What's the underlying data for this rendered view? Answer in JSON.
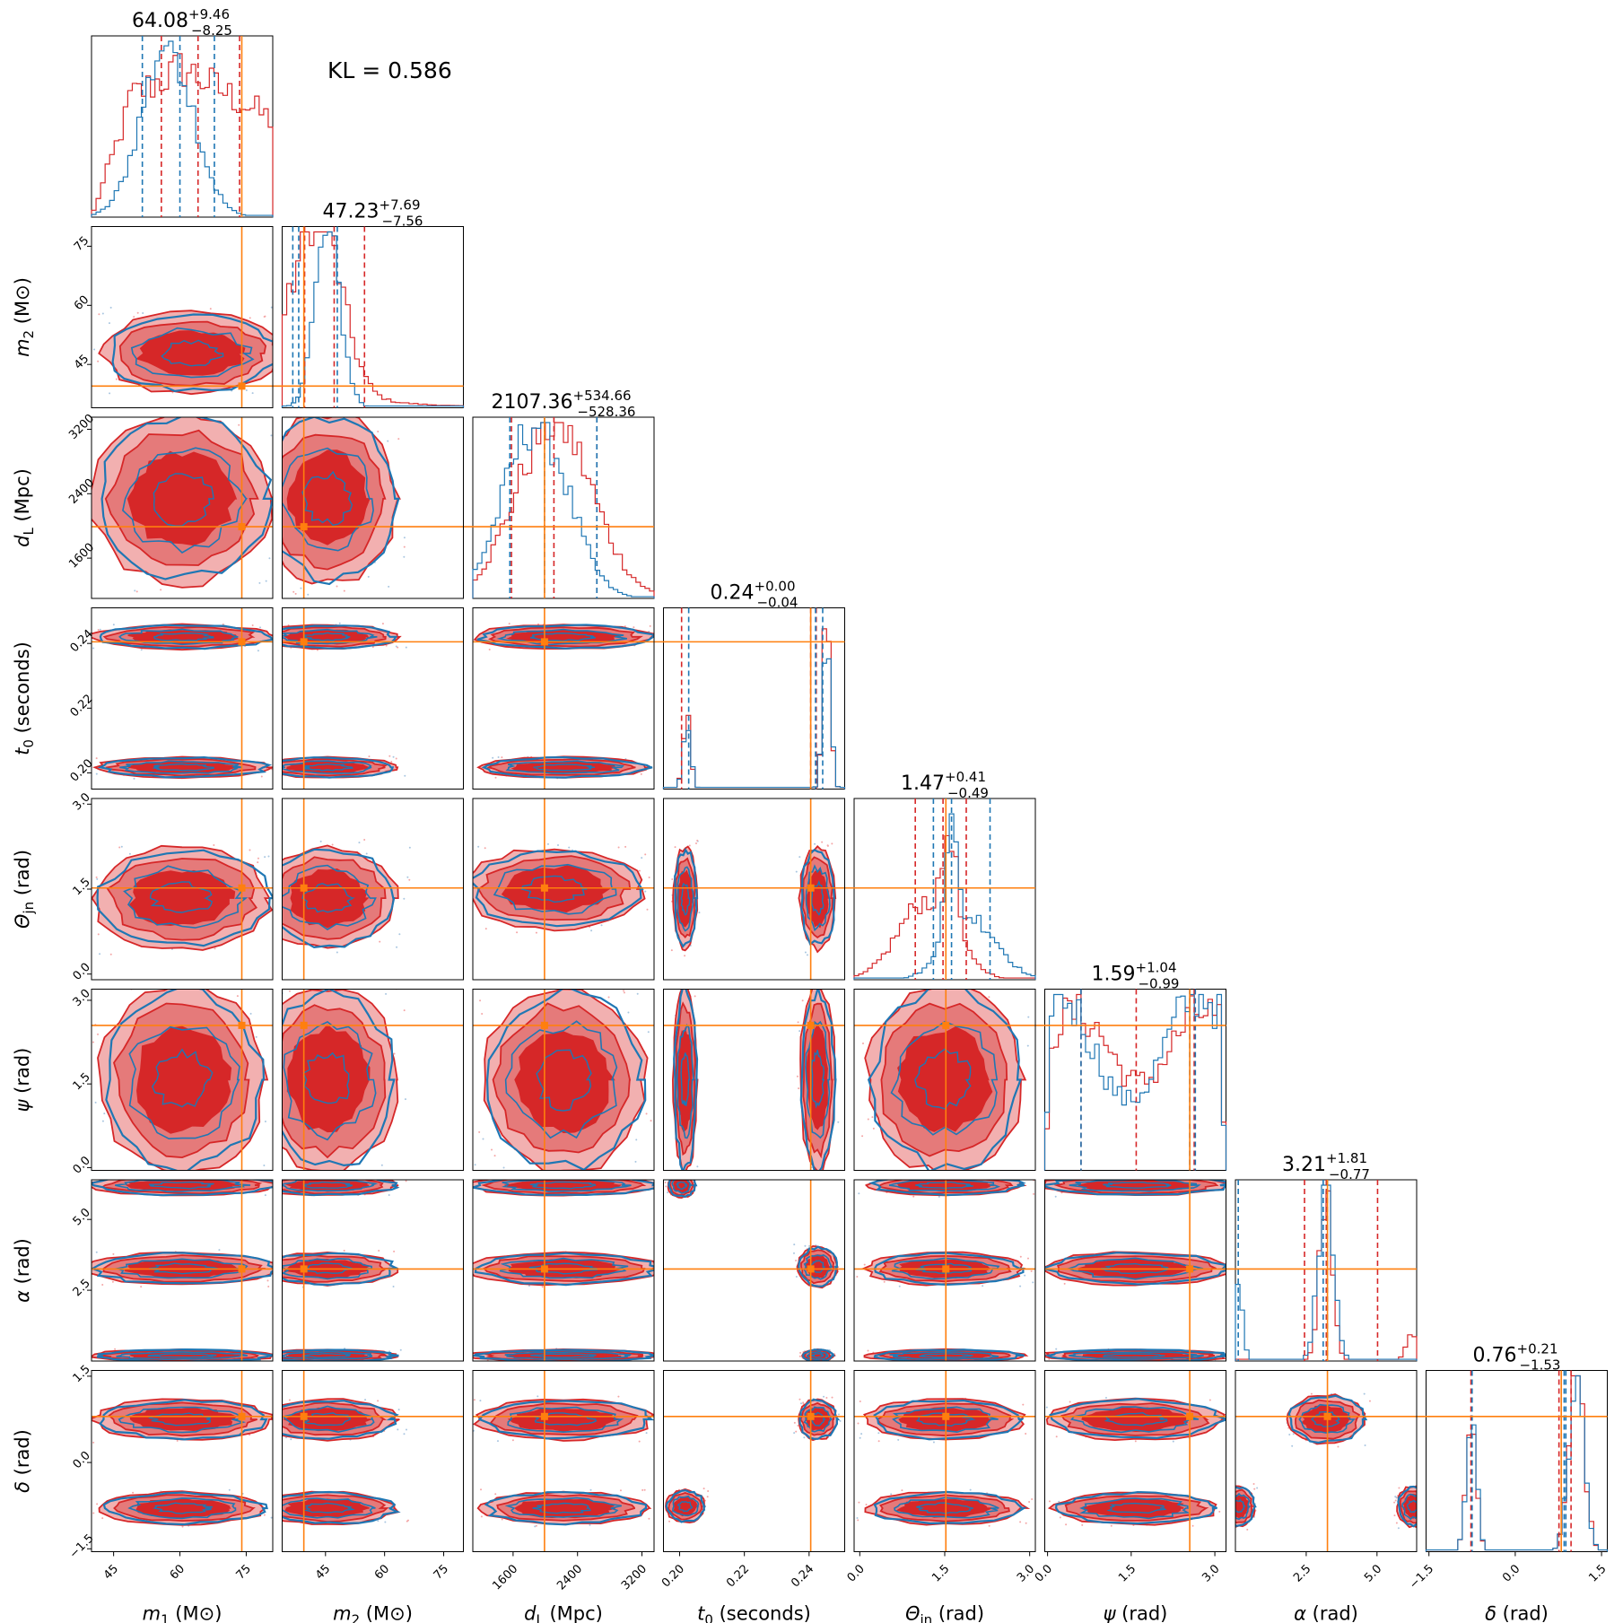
{
  "kl_label": "KL = 0.586",
  "colors": {
    "red": "#d62728",
    "blue": "#1f77b4",
    "orange": "#ff7f0e"
  },
  "chart_data": {
    "type": "corner",
    "series": [
      {
        "name": "",
        "color": "#d62728"
      },
      {
        "name": "",
        "color": "#1f77b4"
      }
    ],
    "parameters": [
      {
        "key": "m1",
        "axis_label": "m₁ (M⊙)",
        "range": [
          40,
          81
        ],
        "ticks": [
          45,
          60,
          75
        ],
        "tick_labels": [
          "45",
          "60",
          "75"
        ],
        "injected": 74,
        "title_median": "64.08",
        "title_plus": "+9.46",
        "title_minus": "−8.25",
        "red_quantiles": [
          55.8,
          64.1,
          73.5
        ],
        "blue_quantiles": [
          51.5,
          60,
          67.8
        ]
      },
      {
        "key": "m2",
        "axis_label": "m₂ (M⊙)",
        "range": [
          34,
          80
        ],
        "ticks": [
          45,
          60,
          75
        ],
        "tick_labels": [
          "45",
          "60",
          "75"
        ],
        "injected": 39.5,
        "title_median": "47.23",
        "title_plus": "+7.69",
        "title_minus": "−7.56",
        "red_quantiles": [
          39.7,
          47.2,
          54.9
        ],
        "blue_quantiles": [
          36.7,
          38.2,
          48
        ]
      },
      {
        "key": "dL",
        "axis_label": "d_L (Mpc)",
        "range": [
          1100,
          3350
        ],
        "ticks": [
          1600,
          2400,
          3200
        ],
        "tick_labels": [
          "1600",
          "2400",
          "3200"
        ],
        "injected": 1990,
        "title_median": "2107.36",
        "title_plus": "+534.66",
        "title_minus": "−528.36",
        "red_quantiles": [
          1580,
          2107,
          2640
        ],
        "blue_quantiles": [
          1560,
          1990,
          2640
        ]
      },
      {
        "key": "t0",
        "axis_label": "t₀ (seconds)",
        "range": [
          0.195,
          0.251
        ],
        "ticks": [
          0.2,
          0.22,
          0.24
        ],
        "tick_labels": [
          "0.20",
          "0.22",
          "0.24"
        ],
        "injected": 0.2405,
        "title_median": "0.24",
        "title_plus": "+0.00",
        "title_minus": "−0.04",
        "red_quantiles": [
          0.2006,
          0.2405,
          0.2422
        ],
        "blue_quantiles": [
          0.2028,
          0.242,
          0.2442
        ]
      },
      {
        "key": "theta",
        "axis_label": "Θ_jn (rad)",
        "range": [
          -0.1,
          3.1
        ],
        "ticks": [
          0.0,
          1.5,
          3.0
        ],
        "tick_labels": [
          "0.0",
          "1.5",
          "3.0"
        ],
        "injected": 1.52,
        "title_median": "1.47",
        "title_plus": "+0.41",
        "title_minus": "−0.49",
        "red_quantiles": [
          0.98,
          1.47,
          1.88
        ],
        "blue_quantiles": [
          1.3,
          1.62,
          2.3
        ]
      },
      {
        "key": "psi",
        "axis_label": "ψ (rad)",
        "range": [
          -0.05,
          3.2
        ],
        "ticks": [
          0.0,
          1.5,
          3.0
        ],
        "tick_labels": [
          "0.0",
          "1.5",
          "3.0"
        ],
        "injected": 2.55,
        "title_median": "1.59",
        "title_plus": "+1.04",
        "title_minus": "−0.99",
        "red_quantiles": [
          0.6,
          1.59,
          2.63
        ],
        "blue_quantiles": [
          0.6,
          2.55,
          2.65
        ]
      },
      {
        "key": "alpha",
        "axis_label": "α (rad)",
        "range": [
          0,
          6.4
        ],
        "ticks": [
          2.5,
          5.0
        ],
        "tick_labels": [
          "2.5",
          "5.0"
        ],
        "injected": 3.25,
        "title_median": "3.21",
        "title_plus": "+1.81",
        "title_minus": "−0.77",
        "red_quantiles": [
          2.44,
          3.21,
          5.02
        ],
        "blue_quantiles": [
          0.1,
          3.1,
          3.25
        ]
      },
      {
        "key": "delta",
        "axis_label": "δ (rad)",
        "range": [
          -1.55,
          1.6
        ],
        "ticks": [
          -1.5,
          0.0,
          1.5
        ],
        "tick_labels": [
          "−1.5",
          "0.0",
          "1.5"
        ],
        "injected": 0.8,
        "title_median": "0.76",
        "title_plus": "+0.21",
        "title_minus": "−1.53",
        "red_quantiles": [
          -0.77,
          0.76,
          0.97
        ],
        "blue_quantiles": [
          -0.75,
          0.85,
          0.88
        ]
      }
    ],
    "y_tick_labels": {
      "m2": [
        "75",
        "60",
        "45"
      ],
      "dL": [
        "3200",
        "2400",
        "1600"
      ],
      "t0": [
        "0.24",
        "0.22",
        "0.20"
      ],
      "theta": [
        "3.0",
        "1.5",
        "0.0"
      ],
      "psi": [
        "3.0",
        "1.5",
        "0.0"
      ],
      "alpha": [
        "5.0",
        "2.5"
      ],
      "delta": [
        "1.5",
        "0.0",
        "−1.5"
      ]
    },
    "axis_label_parts": {
      "m1": {
        "sym": "m",
        "sub": "1",
        "unit": " (M⊙)"
      },
      "m2": {
        "sym": "m",
        "sub": "2",
        "unit": " (M⊙)"
      },
      "dL": {
        "sym": "d",
        "sub": "L",
        "unit": " (Mpc)"
      },
      "t0": {
        "sym": "t",
        "sub": "0",
        "unit": " (seconds)"
      },
      "theta": {
        "sym": "Θ",
        "sub": "jn",
        "unit": " (rad)"
      },
      "psi": {
        "sym": "ψ",
        "sub": "",
        "unit": " (rad)"
      },
      "alpha": {
        "sym": "α",
        "sub": "",
        "unit": " (rad)"
      },
      "delta": {
        "sym": "δ",
        "sub": "",
        "unit": " (rad)"
      }
    }
  }
}
